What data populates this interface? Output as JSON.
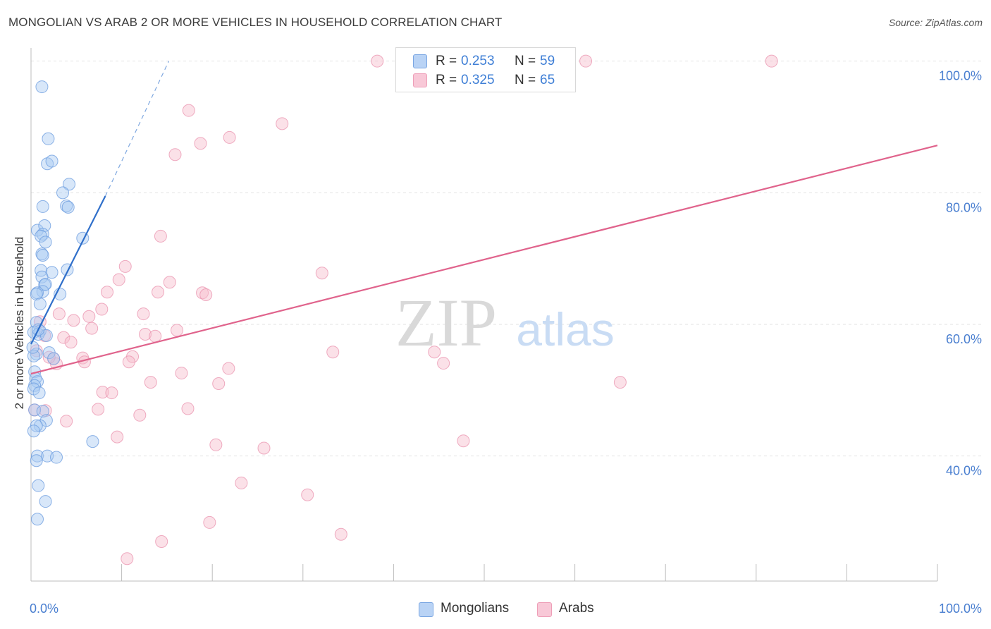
{
  "header": {
    "title": "MONGOLIAN VS ARAB 2 OR MORE VEHICLES IN HOUSEHOLD CORRELATION CHART",
    "source": "Source: ZipAtlas.com"
  },
  "watermark": {
    "zip": "ZIP",
    "atlas": "atlas"
  },
  "legend": {
    "r_label": "R =",
    "n_label": "N =",
    "series": [
      {
        "r": "0.253",
        "n": "59"
      },
      {
        "r": "0.325",
        "n": "65"
      }
    ]
  },
  "bottom_legend": {
    "items": [
      "Mongolians",
      "Arabs"
    ]
  },
  "colors": {
    "blue_fill": "#a9c9f2",
    "blue_stroke": "#6f9fe0",
    "blue_line": "#2f6fca",
    "pink_fill": "#f6bccd",
    "pink_stroke": "#ea92ad",
    "pink_line": "#e0638c",
    "tick_label": "#4a7fd0",
    "grid": "#e3e3e3"
  },
  "chart_data": {
    "type": "scatter",
    "title": "MONGOLIAN VS ARAB 2 OR MORE VEHICLES IN HOUSEHOLD CORRELATION CHART",
    "xlabel": "",
    "ylabel": "2 or more Vehicles in Household",
    "x_tick_labels": [
      "0.0%",
      "100.0%"
    ],
    "y_tick_labels": [
      "40.0%",
      "60.0%",
      "80.0%",
      "100.0%"
    ],
    "y_ticks": [
      40,
      60,
      80,
      100
    ],
    "xlim": [
      0,
      100
    ],
    "ylim": [
      21,
      102
    ],
    "grid": "horizontal dashed",
    "series": [
      {
        "name": "Mongolians",
        "points": [
          [
            1.2,
            96.1
          ],
          [
            1.9,
            88.2
          ],
          [
            1.8,
            84.4
          ],
          [
            2.3,
            84.8
          ],
          [
            4.2,
            81.3
          ],
          [
            3.5,
            80.0
          ],
          [
            1.3,
            77.9
          ],
          [
            3.9,
            78.0
          ],
          [
            4.1,
            77.8
          ],
          [
            0.7,
            74.3
          ],
          [
            1.5,
            75.0
          ],
          [
            1.3,
            73.7
          ],
          [
            1.1,
            73.4
          ],
          [
            5.7,
            73.1
          ],
          [
            1.6,
            72.5
          ],
          [
            1.2,
            70.7
          ],
          [
            1.3,
            70.5
          ],
          [
            4.0,
            68.3
          ],
          [
            1.1,
            68.2
          ],
          [
            2.3,
            67.9
          ],
          [
            1.2,
            67.2
          ],
          [
            1.5,
            66.0
          ],
          [
            1.6,
            66.1
          ],
          [
            1.3,
            65.0
          ],
          [
            0.7,
            64.8
          ],
          [
            0.6,
            64.6
          ],
          [
            3.2,
            64.6
          ],
          [
            1.0,
            63.1
          ],
          [
            0.6,
            60.3
          ],
          [
            1.0,
            59.0
          ],
          [
            0.3,
            58.8
          ],
          [
            0.8,
            58.5
          ],
          [
            1.7,
            58.3
          ],
          [
            2.0,
            55.7
          ],
          [
            2.5,
            54.8
          ],
          [
            0.6,
            55.5
          ],
          [
            0.3,
            55.2
          ],
          [
            0.4,
            52.8
          ],
          [
            0.5,
            51.8
          ],
          [
            0.7,
            51.3
          ],
          [
            0.4,
            50.7
          ],
          [
            0.3,
            50.2
          ],
          [
            0.9,
            49.6
          ],
          [
            0.4,
            47.0
          ],
          [
            1.3,
            46.8
          ],
          [
            1.7,
            45.4
          ],
          [
            1.0,
            44.6
          ],
          [
            0.6,
            44.6
          ],
          [
            0.3,
            43.8
          ],
          [
            6.8,
            42.2
          ],
          [
            0.7,
            40.0
          ],
          [
            1.8,
            40.0
          ],
          [
            2.8,
            39.8
          ],
          [
            0.6,
            39.3
          ],
          [
            0.8,
            35.5
          ],
          [
            1.6,
            33.1
          ],
          [
            0.7,
            30.4
          ],
          [
            0.2,
            56.5
          ],
          [
            0.8,
            59.2
          ]
        ]
      },
      {
        "name": "Arabs",
        "points": [
          [
            38.2,
            100.0
          ],
          [
            47.3,
            100.0
          ],
          [
            61.2,
            100.0
          ],
          [
            81.7,
            100.0
          ],
          [
            17.4,
            92.5
          ],
          [
            27.7,
            90.5
          ],
          [
            21.9,
            88.4
          ],
          [
            18.7,
            87.5
          ],
          [
            15.9,
            85.8
          ],
          [
            14.3,
            73.4
          ],
          [
            10.4,
            68.8
          ],
          [
            32.1,
            67.8
          ],
          [
            9.7,
            66.8
          ],
          [
            15.3,
            66.4
          ],
          [
            8.4,
            64.9
          ],
          [
            14.0,
            64.9
          ],
          [
            18.9,
            64.8
          ],
          [
            19.3,
            64.5
          ],
          [
            7.8,
            62.3
          ],
          [
            12.4,
            61.6
          ],
          [
            3.1,
            61.6
          ],
          [
            6.4,
            61.2
          ],
          [
            4.7,
            60.6
          ],
          [
            6.7,
            59.4
          ],
          [
            16.1,
            59.1
          ],
          [
            12.6,
            58.5
          ],
          [
            13.7,
            58.2
          ],
          [
            3.6,
            58.0
          ],
          [
            1.5,
            58.3
          ],
          [
            4.4,
            57.3
          ],
          [
            33.3,
            55.8
          ],
          [
            44.5,
            55.8
          ],
          [
            11.2,
            55.1
          ],
          [
            5.7,
            54.9
          ],
          [
            2.5,
            54.8
          ],
          [
            5.9,
            54.3
          ],
          [
            10.8,
            54.3
          ],
          [
            2.8,
            54.0
          ],
          [
            45.5,
            54.1
          ],
          [
            21.8,
            53.3
          ],
          [
            16.6,
            52.6
          ],
          [
            65.0,
            51.2
          ],
          [
            13.2,
            51.2
          ],
          [
            20.7,
            51.0
          ],
          [
            7.9,
            49.7
          ],
          [
            8.9,
            49.6
          ],
          [
            7.4,
            47.1
          ],
          [
            17.3,
            47.2
          ],
          [
            0.4,
            47.0
          ],
          [
            1.6,
            46.9
          ],
          [
            12.0,
            46.2
          ],
          [
            3.9,
            45.3
          ],
          [
            9.5,
            42.9
          ],
          [
            47.7,
            42.3
          ],
          [
            20.4,
            41.7
          ],
          [
            25.7,
            41.2
          ],
          [
            23.2,
            35.9
          ],
          [
            30.5,
            34.1
          ],
          [
            19.7,
            29.9
          ],
          [
            14.4,
            27.0
          ],
          [
            34.2,
            28.1
          ],
          [
            10.6,
            24.4
          ],
          [
            1.0,
            60.4
          ],
          [
            2.0,
            55.0
          ],
          [
            0.6,
            56.0
          ]
        ]
      }
    ],
    "trendlines": [
      {
        "series": "Mongolians",
        "from": [
          0,
          57.0
        ],
        "to": [
          8.2,
          79.5
        ],
        "dashed_to": [
          15.2,
          100.0
        ]
      },
      {
        "series": "Arabs",
        "from": [
          0,
          52.5
        ],
        "to": [
          100,
          87.2
        ]
      }
    ]
  }
}
